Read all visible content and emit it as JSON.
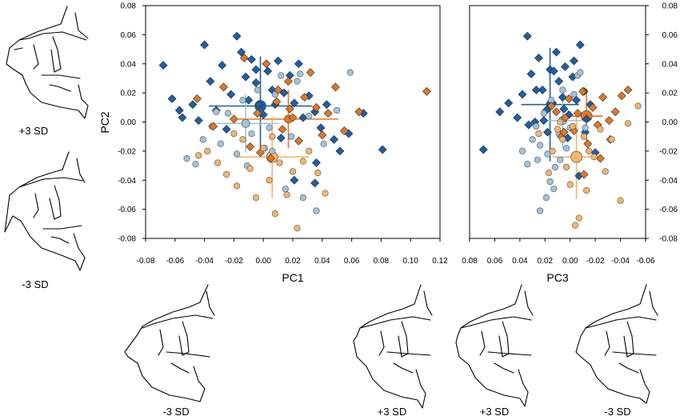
{
  "colors": {
    "dark_blue": "#1f5fa3",
    "light_blue": "#9fc3de",
    "orange": "#e8761f",
    "light_orange": "#f5b46b",
    "frame": "#000000"
  },
  "shape_labels": {
    "left_top": "+3 SD",
    "left_bottom": "-3 SD",
    "bottom_1": "-3 SD",
    "bottom_2": "+3 SD",
    "bottom_3": "+3 SD",
    "bottom_4": "-3 SD"
  },
  "chart_data": [
    {
      "type": "scatter",
      "xlabel": "PC1",
      "ylabel": "PC2",
      "xlim": [
        -0.08,
        0.12
      ],
      "ylim": [
        -0.08,
        0.08
      ],
      "xticks": [
        "-0.08",
        "-0.06",
        "-0.04",
        "-0.02",
        "0.00",
        "0.02",
        "0.04",
        "0.06",
        "0.08",
        "0.10",
        "0.12"
      ],
      "yticks": [
        "-0.08",
        "-0.06",
        "-0.04",
        "-0.02",
        "0.00",
        "0.02",
        "0.04",
        "0.06",
        "0.08"
      ],
      "series": [
        {
          "marker": "diamond",
          "color": "#1f5fa3",
          "points": [
            [
              -0.068,
              0.039
            ],
            [
              -0.062,
              0.016
            ],
            [
              -0.055,
              0.003
            ],
            [
              -0.048,
              0.012
            ],
            [
              -0.04,
              0.053
            ],
            [
              -0.036,
              0.028
            ],
            [
              -0.032,
              0.008
            ],
            [
              -0.028,
              0.039
            ],
            [
              -0.022,
              0.019
            ],
            [
              -0.018,
              0.059
            ],
            [
              -0.015,
              0.048
            ],
            [
              -0.012,
              0.031
            ],
            [
              -0.01,
              0.015
            ],
            [
              -0.008,
              0.043
            ],
            [
              -0.005,
              0.027
            ],
            [
              -0.003,
              0.012
            ],
            [
              0.0,
              0.005
            ],
            [
              0.003,
              0.035
            ],
            [
              0.006,
              0.022
            ],
            [
              0.01,
              0.042
            ],
            [
              0.014,
              0.02
            ],
            [
              0.018,
              0.032
            ],
            [
              0.021,
              0.013
            ],
            [
              0.024,
              0.04
            ],
            [
              0.027,
              0.003
            ],
            [
              0.031,
              0.018
            ],
            [
              0.035,
              0.007
            ],
            [
              0.039,
              -0.004
            ],
            [
              0.043,
              0.012
            ],
            [
              0.048,
              -0.012
            ],
            [
              0.052,
              -0.02
            ],
            [
              0.058,
              -0.008
            ],
            [
              0.068,
              0.006
            ],
            [
              0.081,
              -0.019
            ],
            [
              0.035,
              -0.042
            ],
            [
              0.021,
              -0.04
            ],
            [
              0.012,
              -0.011
            ],
            [
              -0.025,
              -0.005
            ],
            [
              -0.044,
              0.001
            ],
            [
              -0.057,
              0.008
            ],
            [
              -0.005,
              0.036
            ],
            [
              0.008,
              0.012
            ],
            [
              0.036,
              -0.028
            ]
          ]
        },
        {
          "marker": "circle",
          "color": "#9fc3de",
          "points": [
            [
              -0.052,
              -0.025
            ],
            [
              -0.046,
              -0.029
            ],
            [
              -0.041,
              -0.012
            ],
            [
              -0.035,
              -0.003
            ],
            [
              -0.029,
              -0.015
            ],
            [
              -0.024,
              0.006
            ],
            [
              -0.018,
              -0.022
            ],
            [
              -0.014,
              0.015
            ],
            [
              -0.011,
              -0.03
            ],
            [
              -0.008,
              -0.008
            ],
            [
              -0.004,
              0.022
            ],
            [
              0.001,
              -0.018
            ],
            [
              0.004,
              -0.004
            ],
            [
              0.008,
              0.019
            ],
            [
              0.012,
              0.032
            ],
            [
              0.015,
              -0.046
            ],
            [
              0.019,
              -0.01
            ],
            [
              0.023,
              0.028
            ],
            [
              0.027,
              -0.052
            ],
            [
              0.031,
              0.004
            ],
            [
              0.036,
              -0.061
            ],
            [
              0.041,
              -0.015
            ],
            [
              0.05,
              0.008
            ],
            [
              0.059,
              0.034
            ],
            [
              0.025,
              0.033
            ],
            [
              -0.032,
              0.007
            ],
            [
              0.006,
              -0.02
            ]
          ]
        },
        {
          "marker": "diamond",
          "color": "#e8761f",
          "points": [
            [
              -0.045,
              0.016
            ],
            [
              -0.034,
              -0.003
            ],
            [
              -0.027,
              0.024
            ],
            [
              -0.02,
              0.002
            ],
            [
              -0.013,
              0.044
            ],
            [
              -0.009,
              -0.017
            ],
            [
              -0.004,
              0.006
            ],
            [
              0.002,
              0.04
            ],
            [
              0.005,
              -0.025
            ],
            [
              0.009,
              0.014
            ],
            [
              0.013,
              -0.005
            ],
            [
              0.017,
              0.028
            ],
            [
              0.02,
              0.003
            ],
            [
              0.024,
              -0.013
            ],
            [
              0.028,
              0.017
            ],
            [
              0.032,
              0.034
            ],
            [
              0.036,
              0.01
            ],
            [
              0.04,
              -0.009
            ],
            [
              0.044,
              0.006
            ],
            [
              0.049,
              0.024
            ],
            [
              0.055,
              -0.006
            ],
            [
              0.065,
              0.007
            ],
            [
              0.111,
              0.021
            ],
            [
              0.018,
              0.009
            ],
            [
              -0.002,
              -0.021
            ],
            [
              0.01,
              0.022
            ]
          ]
        },
        {
          "marker": "circle",
          "color": "#f5b46b",
          "points": [
            [
              -0.044,
              -0.023
            ],
            [
              -0.038,
              -0.02
            ],
            [
              -0.031,
              -0.028
            ],
            [
              -0.025,
              -0.036
            ],
            [
              -0.018,
              -0.044
            ],
            [
              -0.014,
              -0.012
            ],
            [
              -0.009,
              -0.032
            ],
            [
              -0.005,
              -0.052
            ],
            [
              0.0,
              -0.018
            ],
            [
              0.004,
              -0.04
            ],
            [
              0.008,
              -0.063
            ],
            [
              0.011,
              -0.028
            ],
            [
              0.016,
              -0.05
            ],
            [
              0.02,
              -0.034
            ],
            [
              0.023,
              -0.073
            ],
            [
              0.027,
              -0.027
            ],
            [
              0.031,
              -0.02
            ],
            [
              0.037,
              -0.035
            ],
            [
              0.042,
              -0.049
            ],
            [
              0.006,
              -0.01
            ],
            [
              -0.02,
              -0.008
            ]
          ]
        }
      ],
      "group_means": [
        {
          "color": "#1f5fa3",
          "x": -0.002,
          "y": 0.011,
          "xerr": 0.035,
          "yerr": 0.034,
          "size": "large"
        },
        {
          "color": "#9fc3de",
          "x": -0.012,
          "y": -0.001,
          "xerr": 0.022,
          "yerr": 0.02,
          "size": "small"
        },
        {
          "color": "#e8761f",
          "x": 0.017,
          "y": 0.002,
          "xerr": 0.034,
          "yerr": 0.02,
          "size": "small"
        },
        {
          "color": "#f5b46b",
          "x": 0.006,
          "y": -0.024,
          "xerr": 0.025,
          "yerr": 0.028,
          "size": "large"
        }
      ]
    },
    {
      "type": "scatter",
      "xlabel": "PC3",
      "ylabel": "",
      "xlim": [
        0.08,
        -0.06
      ],
      "ylim": [
        -0.08,
        0.08
      ],
      "xticks": [
        "0.08",
        "0.06",
        "0.04",
        "0.02",
        "0.00",
        "-0.02",
        "-0.04",
        "-0.06"
      ],
      "yticks": [
        "-0.08",
        "-0.06",
        "-0.04",
        "-0.02",
        "0.00",
        "0.02",
        "0.04",
        "0.06",
        "0.08"
      ],
      "series": [
        {
          "marker": "diamond",
          "color": "#1f5fa3",
          "points": [
            [
              0.069,
              -0.019
            ],
            [
              0.056,
              0.007
            ],
            [
              0.049,
              0.013
            ],
            [
              0.042,
              0.003
            ],
            [
              0.038,
              0.019
            ],
            [
              0.034,
              0.059
            ],
            [
              0.031,
              0.033
            ],
            [
              0.028,
              0.0
            ],
            [
              0.025,
              0.044
            ],
            [
              0.022,
              0.022
            ],
            [
              0.019,
              0.008
            ],
            [
              0.016,
              0.036
            ],
            [
              0.014,
              0.013
            ],
            [
              0.011,
              0.048
            ],
            [
              0.009,
              0.028
            ],
            [
              0.006,
              0.017
            ],
            [
              0.004,
              0.038
            ],
            [
              0.001,
              0.005
            ],
            [
              -0.002,
              0.031
            ],
            [
              -0.005,
              0.015
            ],
            [
              -0.008,
              0.053
            ],
            [
              -0.011,
              0.021
            ],
            [
              -0.013,
              0.002
            ],
            [
              -0.016,
              0.012
            ],
            [
              0.021,
              0.001
            ],
            [
              0.027,
              0.022
            ],
            [
              0.013,
              0.035
            ],
            [
              -0.003,
              0.042
            ],
            [
              -0.012,
              -0.007
            ],
            [
              -0.02,
              -0.021
            ],
            [
              0.002,
              -0.011
            ],
            [
              0.033,
              -0.002
            ],
            [
              0.005,
              0.009
            ],
            [
              0.018,
              -0.007
            ],
            [
              -0.007,
              -0.037
            ]
          ]
        },
        {
          "marker": "circle",
          "color": "#9fc3de",
          "points": [
            [
              0.038,
              -0.02
            ],
            [
              0.034,
              -0.029
            ],
            [
              0.03,
              -0.012
            ],
            [
              0.027,
              -0.003
            ],
            [
              0.024,
              -0.016
            ],
            [
              0.021,
              0.006
            ],
            [
              0.018,
              -0.022
            ],
            [
              0.015,
              0.015
            ],
            [
              0.012,
              -0.031
            ],
            [
              0.009,
              -0.008
            ],
            [
              0.006,
              0.022
            ],
            [
              0.003,
              -0.018
            ],
            [
              0.0,
              -0.004
            ],
            [
              -0.003,
              0.019
            ],
            [
              -0.006,
              0.032
            ],
            [
              0.013,
              -0.046
            ],
            [
              0.019,
              -0.052
            ],
            [
              0.024,
              -0.061
            ],
            [
              0.016,
              -0.041
            ],
            [
              -0.008,
              0.034
            ],
            [
              -0.012,
              -0.004
            ],
            [
              0.008,
              -0.026
            ],
            [
              0.026,
              -0.026
            ]
          ]
        },
        {
          "marker": "diamond",
          "color": "#e8761f",
          "points": [
            [
              -0.046,
              0.022
            ],
            [
              -0.041,
              0.018
            ],
            [
              -0.036,
              0.007
            ],
            [
              -0.031,
              0.001
            ],
            [
              -0.026,
              0.017
            ],
            [
              -0.022,
              -0.002
            ],
            [
              -0.018,
              0.01
            ],
            [
              -0.014,
              -0.015
            ],
            [
              -0.01,
              0.021
            ],
            [
              -0.006,
              0.006
            ],
            [
              -0.003,
              -0.006
            ],
            [
              0.001,
              0.016
            ],
            [
              0.004,
              0.003
            ],
            [
              0.007,
              -0.01
            ],
            [
              0.011,
              0.007
            ],
            [
              0.015,
              0.011
            ],
            [
              -0.024,
              -0.025
            ],
            [
              -0.011,
              -0.036
            ],
            [
              0.005,
              -0.007
            ],
            [
              -0.032,
              -0.012
            ]
          ]
        },
        {
          "marker": "circle",
          "color": "#f5b46b",
          "points": [
            [
              -0.054,
              0.011
            ],
            [
              -0.046,
              -0.001
            ],
            [
              -0.04,
              -0.054
            ],
            [
              -0.033,
              -0.012
            ],
            [
              -0.028,
              -0.034
            ],
            [
              -0.024,
              -0.005
            ],
            [
              -0.019,
              -0.024
            ],
            [
              -0.015,
              -0.02
            ],
            [
              -0.011,
              -0.01
            ],
            [
              -0.007,
              -0.066
            ],
            [
              -0.004,
              -0.071
            ],
            [
              0.0,
              -0.043
            ],
            [
              0.003,
              -0.031
            ],
            [
              0.006,
              -0.012
            ],
            [
              0.01,
              -0.005
            ],
            [
              0.014,
              -0.02
            ],
            [
              0.017,
              -0.035
            ],
            [
              0.008,
              0.0
            ],
            [
              -0.002,
              -0.003
            ],
            [
              -0.013,
              -0.047
            ],
            [
              0.025,
              -0.008
            ]
          ]
        }
      ],
      "group_means": [
        {
          "color": "#1f5fa3",
          "x": 0.016,
          "y": 0.012,
          "xerr": 0.023,
          "yerr": 0.039,
          "size": "small"
        },
        {
          "color": "#9fc3de",
          "x": 0.006,
          "y": 0.001,
          "xerr": 0.015,
          "yerr": 0.019,
          "size": "small"
        },
        {
          "color": "#e8761f",
          "x": -0.013,
          "y": 0.004,
          "xerr": 0.013,
          "yerr": 0.019,
          "size": "large"
        },
        {
          "color": "#f5b46b",
          "x": -0.005,
          "y": -0.024,
          "xerr": 0.019,
          "yerr": 0.029,
          "size": "large"
        }
      ]
    }
  ]
}
